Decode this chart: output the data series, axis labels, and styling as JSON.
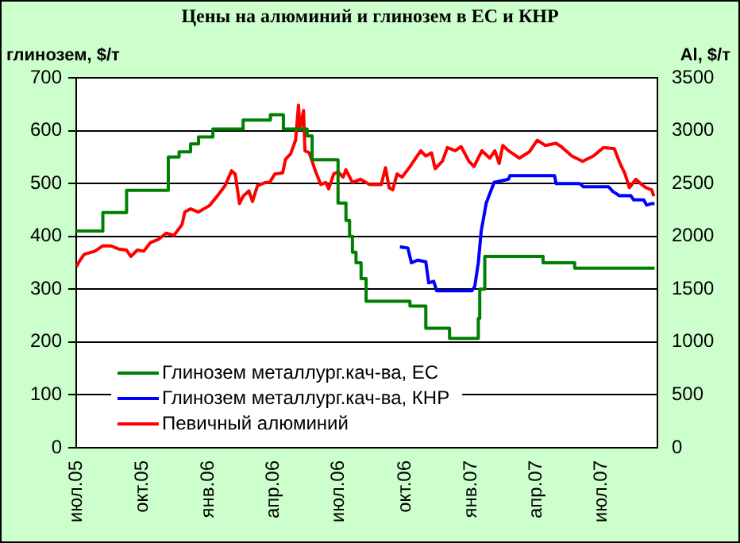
{
  "chart_data": {
    "type": "line",
    "title": "Цены на алюминий и глинозем в ЕС и КНР",
    "ylabel": "глинозем, $/т",
    "y2label": "Al, $/т",
    "xlim": [
      "2005-07-01",
      "2007-09-17"
    ],
    "xticks": [
      {
        "value": "2005-07-01",
        "label": "июл.05"
      },
      {
        "value": "2005-10-01",
        "label": "окт.05"
      },
      {
        "value": "2006-01-01",
        "label": "янв.06"
      },
      {
        "value": "2006-04-01",
        "label": "апр.06"
      },
      {
        "value": "2006-07-01",
        "label": "июл.06"
      },
      {
        "value": "2006-10-01",
        "label": "окт.06"
      },
      {
        "value": "2007-01-01",
        "label": "янв.07"
      },
      {
        "value": "2007-04-01",
        "label": "апр.07"
      },
      {
        "value": "2007-07-01",
        "label": "июл.07"
      }
    ],
    "ylim": [
      0,
      700
    ],
    "yticks": [
      0,
      100,
      200,
      300,
      400,
      500,
      600,
      700
    ],
    "y2lim": [
      0,
      3500
    ],
    "y2ticks": [
      0,
      500,
      1000,
      1500,
      2000,
      2500,
      3000,
      3500
    ],
    "grid": "y",
    "legend": "bottom left",
    "marker": "none",
    "line_style": "solid",
    "series": [
      {
        "name": "Глинозем металлург.кач-ва, ЕС",
        "color": "#008000",
        "type": "step",
        "x": [
          "2005-07-01",
          "2005-08-07",
          "2005-09-09",
          "2005-11-06",
          "2005-11-21",
          "2005-12-07",
          "2005-12-18",
          "2006-01-07",
          "2006-02-18",
          "2006-03-28",
          "2006-04-15",
          "2006-05-18",
          "2006-05-25",
          "2006-06-30",
          "2006-07-11",
          "2006-07-16",
          "2006-07-20",
          "2006-07-25",
          "2006-08-01",
          "2006-08-08",
          "2006-10-08",
          "2006-10-30",
          "2006-12-02",
          "2007-01-11",
          "2007-01-13",
          "2007-01-20",
          "2007-04-11",
          "2007-05-25",
          "2007-09-13"
        ],
        "values": [
          410,
          445,
          487,
          550,
          560,
          575,
          588,
          603,
          620,
          630,
          603,
          590,
          545,
          463,
          430,
          400,
          370,
          350,
          320,
          277,
          268,
          226,
          207,
          245,
          300,
          362,
          350,
          340,
          340
        ]
      },
      {
        "name": "Глинозем металлург.кач-ва, КНР",
        "color": "#0000ff",
        "x": [
          "2006-09-24",
          "2006-10-05",
          "2006-10-10",
          "2006-10-19",
          "2006-10-30",
          "2006-11-03",
          "2006-11-10",
          "2006-11-14",
          "2007-01-02",
          "2007-01-06",
          "2007-01-11",
          "2007-01-15",
          "2007-01-22",
          "2007-02-02",
          "2007-02-22",
          "2007-02-24",
          "2007-04-27",
          "2007-04-29",
          "2007-06-01",
          "2007-06-06",
          "2007-07-11",
          "2007-07-17",
          "2007-07-26",
          "2007-08-11",
          "2007-08-15",
          "2007-08-29",
          "2007-09-02",
          "2007-09-09",
          "2007-09-13"
        ],
        "values": [
          380,
          378,
          350,
          355,
          352,
          312,
          315,
          297,
          297,
          305,
          350,
          410,
          463,
          502,
          508,
          515,
          515,
          500,
          500,
          494,
          494,
          485,
          477,
          477,
          469,
          469,
          459,
          462,
          462
        ]
      },
      {
        "name": "Певичный алюминий",
        "color": "#ff0000",
        "axis": "y2",
        "x": [
          "2005-07-01",
          "2005-07-05",
          "2005-07-12",
          "2005-07-27",
          "2005-08-07",
          "2005-08-18",
          "2005-08-29",
          "2005-09-09",
          "2005-09-15",
          "2005-09-24",
          "2005-10-03",
          "2005-10-12",
          "2005-10-23",
          "2005-11-03",
          "2005-11-14",
          "2005-11-25",
          "2005-11-29",
          "2005-12-07",
          "2005-12-18",
          "2006-01-02",
          "2006-01-13",
          "2006-01-24",
          "2006-02-02",
          "2006-02-07",
          "2006-02-13",
          "2006-02-18",
          "2006-02-26",
          "2006-03-03",
          "2006-03-10",
          "2006-03-21",
          "2006-03-27",
          "2006-04-03",
          "2006-04-14",
          "2006-04-18",
          "2006-04-25",
          "2006-05-02",
          "2006-05-06",
          "2006-05-08",
          "2006-05-13",
          "2006-05-15",
          "2006-05-21",
          "2006-05-26",
          "2006-05-30",
          "2006-06-06",
          "2006-06-13",
          "2006-06-17",
          "2006-06-24",
          "2006-06-30",
          "2006-07-07",
          "2006-07-11",
          "2006-07-20",
          "2006-07-31",
          "2006-08-13",
          "2006-08-29",
          "2006-09-04",
          "2006-09-09",
          "2006-09-14",
          "2006-09-20",
          "2006-09-27",
          "2006-10-08",
          "2006-10-16",
          "2006-10-23",
          "2006-10-30",
          "2006-11-07",
          "2006-11-12",
          "2006-11-22",
          "2006-11-29",
          "2006-12-10",
          "2006-12-18",
          "2006-12-29",
          "2007-01-05",
          "2007-01-16",
          "2007-01-27",
          "2007-02-03",
          "2007-02-09",
          "2007-02-14",
          "2007-02-22",
          "2007-03-09",
          "2007-03-23",
          "2007-04-03",
          "2007-04-14",
          "2007-04-29",
          "2007-05-06",
          "2007-05-21",
          "2007-06-05",
          "2007-06-20",
          "2007-07-04",
          "2007-07-19",
          "2007-07-27",
          "2007-08-03",
          "2007-08-09",
          "2007-08-18",
          "2007-08-26",
          "2007-09-01",
          "2007-09-09",
          "2007-09-12"
        ],
        "values": [
          1710,
          1760,
          1830,
          1860,
          1910,
          1910,
          1880,
          1870,
          1810,
          1870,
          1860,
          1940,
          1970,
          2030,
          2010,
          2110,
          2230,
          2260,
          2230,
          2290,
          2380,
          2480,
          2620,
          2590,
          2310,
          2380,
          2430,
          2330,
          2480,
          2510,
          2510,
          2590,
          2600,
          2730,
          2780,
          2910,
          3240,
          3010,
          3190,
          2810,
          2790,
          2690,
          2610,
          2490,
          2510,
          2450,
          2590,
          2610,
          2560,
          2630,
          2510,
          2540,
          2490,
          2490,
          2650,
          2460,
          2440,
          2590,
          2560,
          2660,
          2740,
          2810,
          2760,
          2790,
          2640,
          2710,
          2840,
          2810,
          2850,
          2710,
          2660,
          2810,
          2740,
          2810,
          2690,
          2860,
          2810,
          2740,
          2800,
          2910,
          2860,
          2880,
          2850,
          2760,
          2710,
          2760,
          2840,
          2830,
          2690,
          2590,
          2460,
          2540,
          2490,
          2460,
          2440,
          2380
        ]
      }
    ]
  }
}
